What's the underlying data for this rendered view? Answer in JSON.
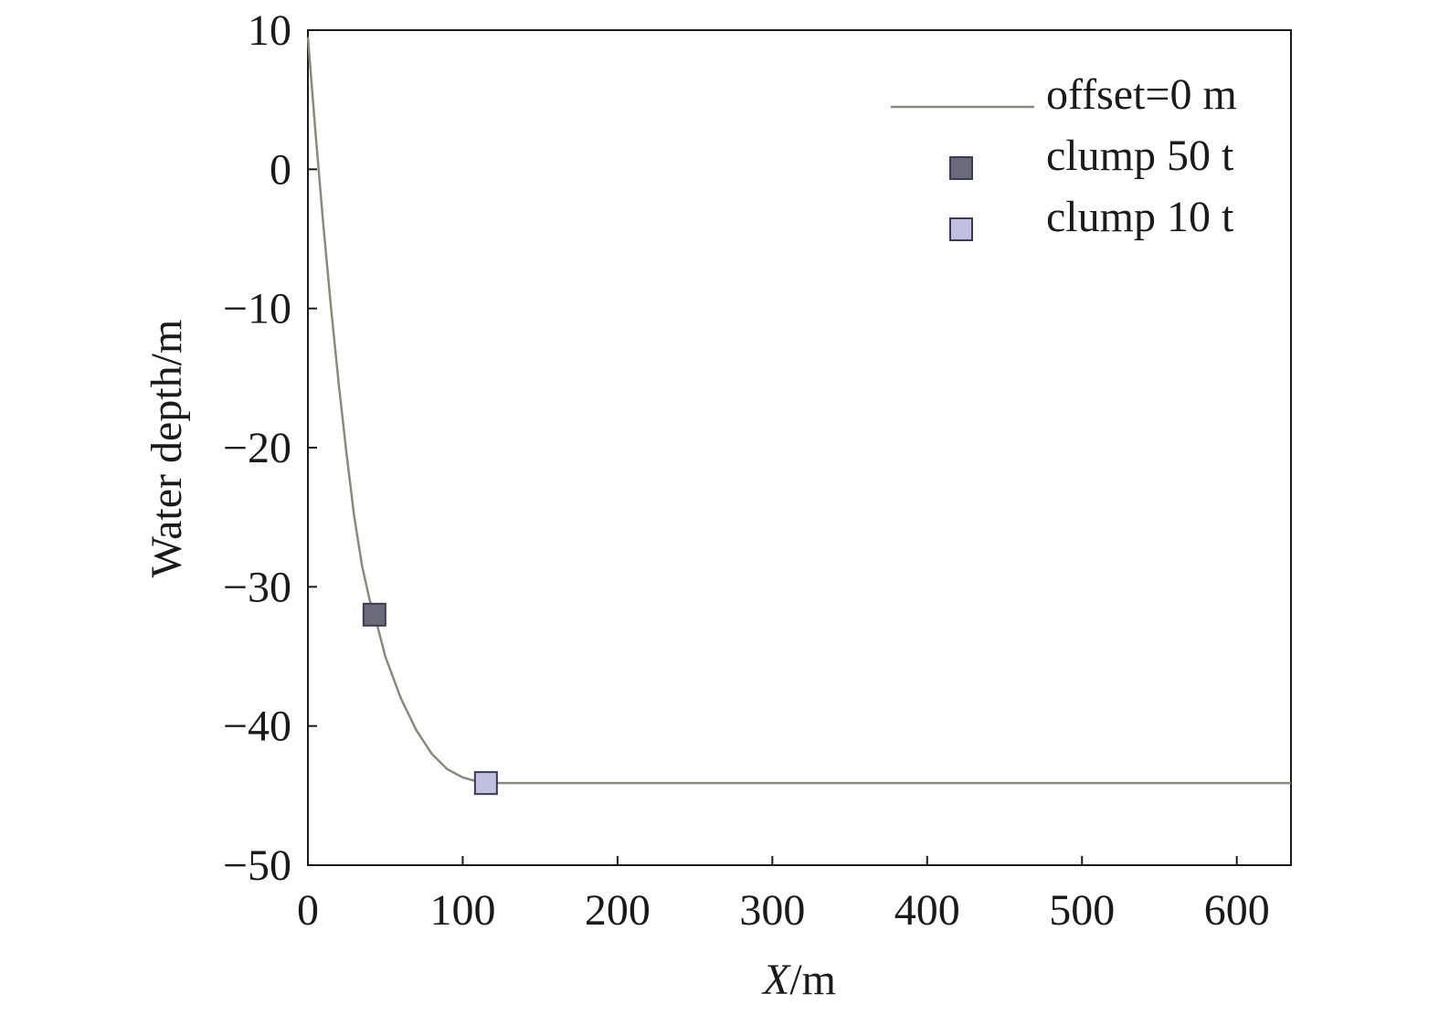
{
  "chart_data": {
    "type": "line",
    "title": "",
    "xlabel": "X",
    "xlabel_unit": "/m",
    "ylabel": "Water depth/m",
    "xlim": [
      0,
      635
    ],
    "ylim": [
      -50,
      10
    ],
    "xticks": [
      0,
      100,
      200,
      300,
      400,
      500,
      600
    ],
    "yticks": [
      10,
      0,
      -10,
      -20,
      -30,
      -40,
      -50
    ],
    "ytick_labels": [
      "10",
      "0",
      "−10",
      "−20",
      "−30",
      "−40",
      "−50"
    ],
    "grid": false,
    "legend_position": "top-right",
    "series": [
      {
        "name": "offset=0 m",
        "kind": "line",
        "color": "#8a8a7a",
        "x": [
          0,
          5,
          10,
          15,
          20,
          25,
          30,
          35,
          40,
          43,
          50,
          60,
          70,
          80,
          90,
          100,
          110,
          115,
          150,
          200,
          300,
          400,
          500,
          600,
          635
        ],
        "y": [
          9.5,
          2.5,
          -4.0,
          -10.0,
          -15.5,
          -20.5,
          -25.0,
          -28.5,
          -31.0,
          -32.0,
          -35.0,
          -38.0,
          -40.3,
          -42.0,
          -43.1,
          -43.7,
          -44.0,
          -44.1,
          -44.1,
          -44.1,
          -44.1,
          -44.1,
          -44.1,
          -44.1,
          -44.1
        ]
      },
      {
        "name": "clump 50 t",
        "kind": "marker",
        "color": "#6a6a7a",
        "x": [
          43
        ],
        "y": [
          -32.0
        ]
      },
      {
        "name": "clump 10 t",
        "kind": "marker",
        "color": "#c0c0e0",
        "x": [
          115
        ],
        "y": [
          -44.1
        ]
      }
    ]
  }
}
